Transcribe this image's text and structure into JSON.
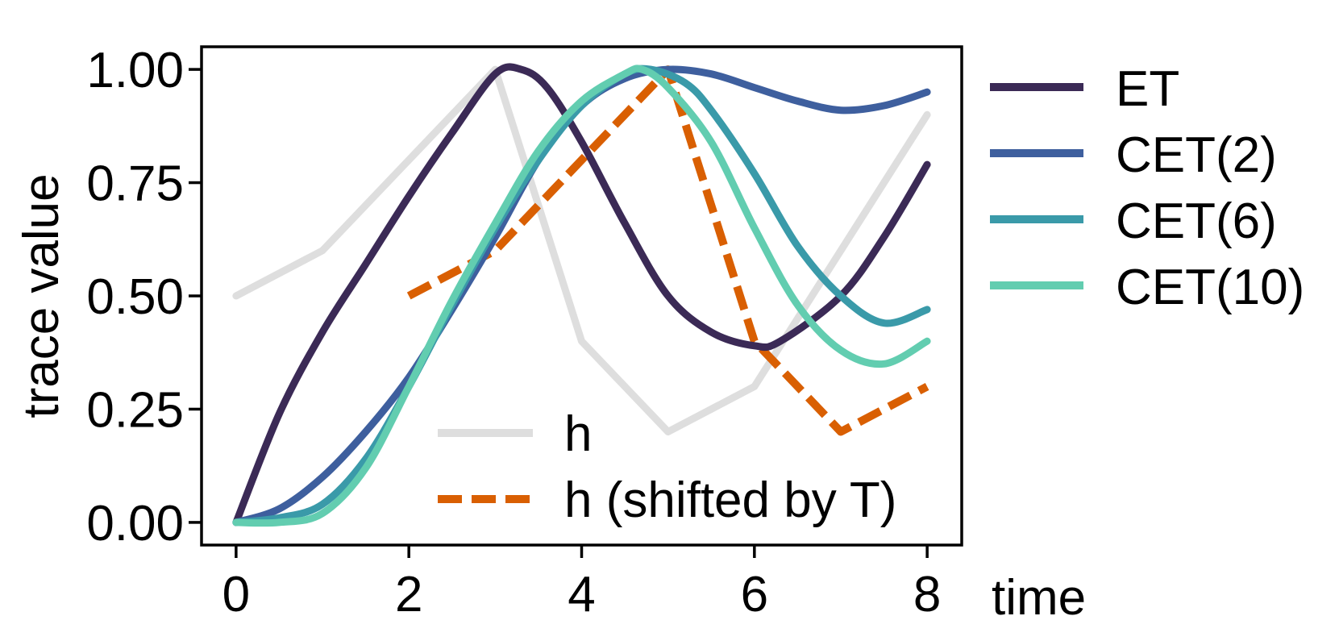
{
  "chart_data": {
    "type": "line",
    "xlabel": "time",
    "ylabel": "trace value",
    "xlim": [
      -0.4,
      8.4
    ],
    "ylim": [
      -0.05,
      1.05
    ],
    "xticks": [
      0,
      2,
      4,
      6,
      8
    ],
    "yticks": [
      0.0,
      0.25,
      0.5,
      0.75,
      1.0
    ],
    "xtick_labels": [
      "0",
      "2",
      "4",
      "6",
      "8"
    ],
    "ytick_labels": [
      "0.00",
      "0.25",
      "0.50",
      "0.75",
      "1.00"
    ],
    "grid": false,
    "series": [
      {
        "name": "h",
        "color": "#dedede",
        "dash": "solid",
        "legend": "inside-lower-right",
        "x": [
          0,
          1,
          3,
          4,
          5,
          6,
          8
        ],
        "y": [
          0.5,
          0.6,
          1.0,
          0.4,
          0.2,
          0.3,
          0.9
        ]
      },
      {
        "name": "h (shifted by T)",
        "color": "#d95f02",
        "dash": "dashed",
        "legend": "inside-lower-right",
        "x": [
          2,
          3,
          5,
          6,
          7,
          8
        ],
        "y": [
          0.5,
          0.6,
          1.0,
          0.4,
          0.2,
          0.3
        ]
      },
      {
        "name": "ET",
        "color": "#3b2a56",
        "dash": "solid",
        "legend": "outside-right",
        "x": [
          0,
          0.5,
          1,
          1.5,
          2,
          2.5,
          3,
          3.3,
          3.6,
          4,
          4.5,
          5,
          5.5,
          6,
          6.3,
          7,
          7.5,
          8
        ],
        "y": [
          0.0,
          0.24,
          0.42,
          0.57,
          0.72,
          0.86,
          0.99,
          1.0,
          0.96,
          0.84,
          0.66,
          0.5,
          0.42,
          0.39,
          0.4,
          0.5,
          0.63,
          0.79
        ]
      },
      {
        "name": "CET(2)",
        "color": "#3e5f9e",
        "dash": "solid",
        "legend": "outside-right",
        "x": [
          0,
          0.5,
          1,
          1.5,
          2,
          2.5,
          3,
          3.5,
          4,
          4.5,
          5,
          5.5,
          6,
          6.5,
          7,
          7.5,
          8
        ],
        "y": [
          0.0,
          0.03,
          0.1,
          0.2,
          0.32,
          0.47,
          0.63,
          0.8,
          0.92,
          0.98,
          1.0,
          0.99,
          0.96,
          0.93,
          0.91,
          0.92,
          0.95
        ]
      },
      {
        "name": "CET(6)",
        "color": "#3a9aa9",
        "dash": "solid",
        "legend": "outside-right",
        "x": [
          0,
          0.5,
          1,
          1.5,
          2,
          2.5,
          3,
          3.5,
          4,
          4.5,
          4.8,
          5.2,
          5.5,
          6,
          6.5,
          7,
          7.5,
          8
        ],
        "y": [
          0.0,
          0.01,
          0.04,
          0.14,
          0.3,
          0.48,
          0.65,
          0.8,
          0.92,
          0.99,
          1.0,
          0.97,
          0.91,
          0.77,
          0.61,
          0.5,
          0.44,
          0.47
        ]
      },
      {
        "name": "CET(10)",
        "color": "#62cdb0",
        "dash": "solid",
        "legend": "outside-right",
        "x": [
          0,
          0.5,
          1,
          1.5,
          2,
          2.5,
          3,
          3.5,
          4,
          4.5,
          4.7,
          5,
          5.5,
          6,
          6.5,
          7,
          7.5,
          8
        ],
        "y": [
          0.0,
          0.0,
          0.02,
          0.12,
          0.3,
          0.49,
          0.66,
          0.82,
          0.93,
          0.99,
          1.0,
          0.96,
          0.84,
          0.65,
          0.48,
          0.38,
          0.35,
          0.4
        ]
      }
    ]
  }
}
